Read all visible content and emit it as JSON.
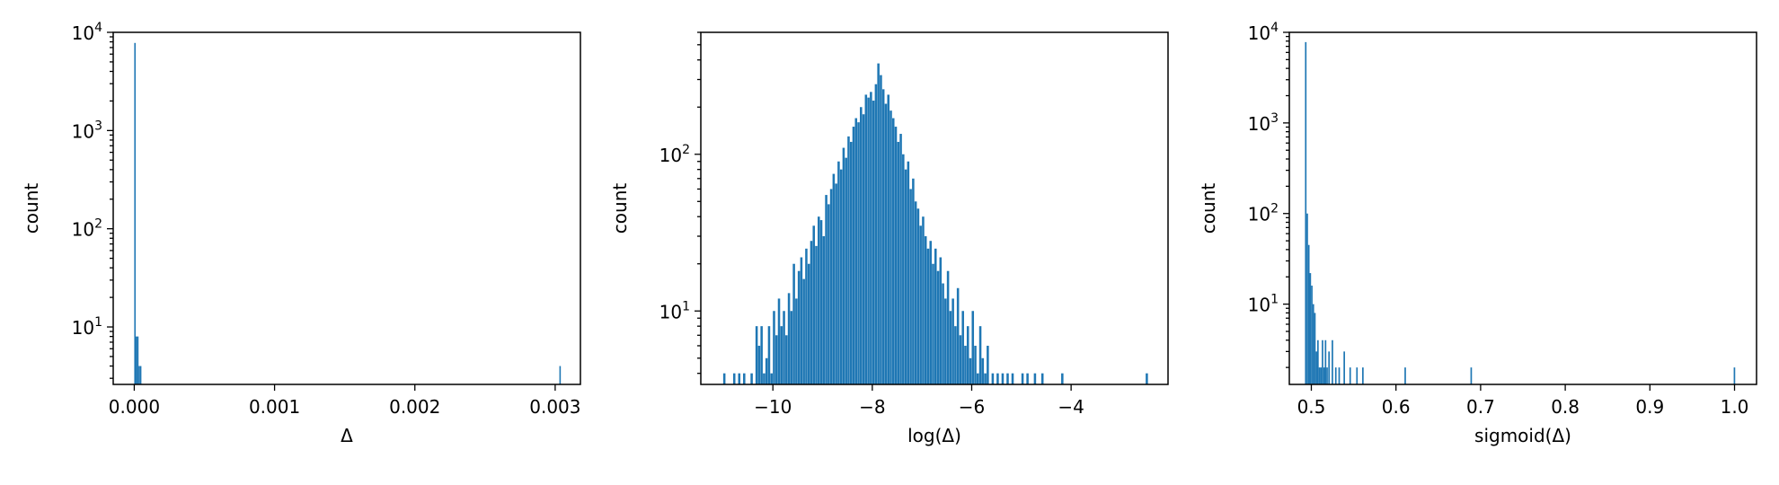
{
  "colors": {
    "bar": "#1f77b4",
    "axis": "#000000",
    "background": "#ffffff"
  },
  "chart_data": [
    {
      "type": "bar",
      "subtype": "histogram",
      "xlabel": "Δ",
      "ylabel": "count",
      "yscale": "log",
      "xlim": [
        -0.00015,
        0.00318
      ],
      "ylim": [
        2.6,
        10000
      ],
      "xticks": [
        0,
        0.001,
        0.002,
        0.003
      ],
      "xtick_labels": [
        "0.000",
        "0.001",
        "0.002",
        "0.003"
      ],
      "yticks": [
        10,
        100,
        1000,
        10000
      ],
      "ytick_labels": [
        {
          "base": "10",
          "exp": "1"
        },
        {
          "base": "10",
          "exp": "2"
        },
        {
          "base": "10",
          "exp": "3"
        },
        {
          "base": "10",
          "exp": "4"
        }
      ],
      "bin_width": 1.02e-05,
      "bins": [
        {
          "x": 0.0,
          "count": 7800
        },
        {
          "x": 1.02e-05,
          "count": 8
        },
        {
          "x": 2.04e-05,
          "count": 8
        },
        {
          "x": 3.06e-05,
          "count": 4
        },
        {
          "x": 4.08e-05,
          "count": 4
        },
        {
          "x": 0.00303,
          "count": 4
        }
      ],
      "grid": false,
      "legend": "none"
    },
    {
      "type": "bar",
      "subtype": "histogram",
      "xlabel": "log(Δ)",
      "ylabel": "count",
      "yscale": "log",
      "xlim": [
        -11.45,
        -2.05
      ],
      "ylim": [
        3.4,
        600
      ],
      "xticks": [
        -10,
        -8,
        -6,
        -4
      ],
      "xtick_labels": [
        "−10",
        "−8",
        "−6",
        "−4"
      ],
      "yticks": [
        10,
        100
      ],
      "ytick_labels": [
        {
          "base": "10",
          "exp": "1"
        },
        {
          "base": "10",
          "exp": "2"
        }
      ],
      "bin_width": 0.046,
      "bins": [
        {
          "x": -11.0,
          "count": 4
        },
        {
          "x": -10.8,
          "count": 4
        },
        {
          "x": -10.7,
          "count": 4
        },
        {
          "x": -10.6,
          "count": 4
        },
        {
          "x": -10.45,
          "count": 4
        },
        {
          "x": -10.35,
          "count": 8
        },
        {
          "x": -10.3,
          "count": 6
        },
        {
          "x": -10.25,
          "count": 8
        },
        {
          "x": -10.2,
          "count": 4
        },
        {
          "x": -10.15,
          "count": 5
        },
        {
          "x": -10.1,
          "count": 8
        },
        {
          "x": -10.05,
          "count": 4
        },
        {
          "x": -10.0,
          "count": 10
        },
        {
          "x": -9.95,
          "count": 7
        },
        {
          "x": -9.9,
          "count": 12
        },
        {
          "x": -9.85,
          "count": 8
        },
        {
          "x": -9.8,
          "count": 10
        },
        {
          "x": -9.75,
          "count": 7
        },
        {
          "x": -9.7,
          "count": 13
        },
        {
          "x": -9.65,
          "count": 10
        },
        {
          "x": -9.6,
          "count": 20
        },
        {
          "x": -9.55,
          "count": 12
        },
        {
          "x": -9.5,
          "count": 18
        },
        {
          "x": -9.45,
          "count": 22
        },
        {
          "x": -9.4,
          "count": 16
        },
        {
          "x": -9.35,
          "count": 25
        },
        {
          "x": -9.3,
          "count": 20
        },
        {
          "x": -9.25,
          "count": 28
        },
        {
          "x": -9.2,
          "count": 35
        },
        {
          "x": -9.15,
          "count": 26
        },
        {
          "x": -9.1,
          "count": 40
        },
        {
          "x": -9.05,
          "count": 38
        },
        {
          "x": -9.0,
          "count": 30
        },
        {
          "x": -8.95,
          "count": 55
        },
        {
          "x": -8.9,
          "count": 48
        },
        {
          "x": -8.85,
          "count": 60
        },
        {
          "x": -8.8,
          "count": 75
        },
        {
          "x": -8.75,
          "count": 65
        },
        {
          "x": -8.7,
          "count": 90
        },
        {
          "x": -8.65,
          "count": 80
        },
        {
          "x": -8.6,
          "count": 110
        },
        {
          "x": -8.55,
          "count": 95
        },
        {
          "x": -8.5,
          "count": 130
        },
        {
          "x": -8.45,
          "count": 120
        },
        {
          "x": -8.4,
          "count": 150
        },
        {
          "x": -8.35,
          "count": 170
        },
        {
          "x": -8.3,
          "count": 160
        },
        {
          "x": -8.25,
          "count": 200
        },
        {
          "x": -8.2,
          "count": 180
        },
        {
          "x": -8.15,
          "count": 240
        },
        {
          "x": -8.1,
          "count": 230
        },
        {
          "x": -8.05,
          "count": 250
        },
        {
          "x": -8.0,
          "count": 220
        },
        {
          "x": -7.95,
          "count": 280
        },
        {
          "x": -7.9,
          "count": 380
        },
        {
          "x": -7.85,
          "count": 320
        },
        {
          "x": -7.8,
          "count": 260
        },
        {
          "x": -7.75,
          "count": 210
        },
        {
          "x": -7.7,
          "count": 240
        },
        {
          "x": -7.65,
          "count": 190
        },
        {
          "x": -7.6,
          "count": 170
        },
        {
          "x": -7.55,
          "count": 150
        },
        {
          "x": -7.5,
          "count": 120
        },
        {
          "x": -7.45,
          "count": 135
        },
        {
          "x": -7.4,
          "count": 100
        },
        {
          "x": -7.35,
          "count": 80
        },
        {
          "x": -7.3,
          "count": 90
        },
        {
          "x": -7.25,
          "count": 60
        },
        {
          "x": -7.2,
          "count": 70
        },
        {
          "x": -7.15,
          "count": 50
        },
        {
          "x": -7.1,
          "count": 45
        },
        {
          "x": -7.05,
          "count": 35
        },
        {
          "x": -7.0,
          "count": 40
        },
        {
          "x": -6.95,
          "count": 30
        },
        {
          "x": -6.9,
          "count": 25
        },
        {
          "x": -6.85,
          "count": 28
        },
        {
          "x": -6.8,
          "count": 20
        },
        {
          "x": -6.75,
          "count": 25
        },
        {
          "x": -6.7,
          "count": 18
        },
        {
          "x": -6.65,
          "count": 22
        },
        {
          "x": -6.6,
          "count": 15
        },
        {
          "x": -6.55,
          "count": 12
        },
        {
          "x": -6.5,
          "count": 18
        },
        {
          "x": -6.45,
          "count": 10
        },
        {
          "x": -6.4,
          "count": 12
        },
        {
          "x": -6.35,
          "count": 8
        },
        {
          "x": -6.3,
          "count": 14
        },
        {
          "x": -6.25,
          "count": 7
        },
        {
          "x": -6.2,
          "count": 10
        },
        {
          "x": -6.15,
          "count": 6
        },
        {
          "x": -6.1,
          "count": 8
        },
        {
          "x": -6.05,
          "count": 5
        },
        {
          "x": -6.0,
          "count": 10
        },
        {
          "x": -5.95,
          "count": 6
        },
        {
          "x": -5.9,
          "count": 4
        },
        {
          "x": -5.85,
          "count": 8
        },
        {
          "x": -5.8,
          "count": 5
        },
        {
          "x": -5.75,
          "count": 4
        },
        {
          "x": -5.7,
          "count": 6
        },
        {
          "x": -5.6,
          "count": 4
        },
        {
          "x": -5.5,
          "count": 4
        },
        {
          "x": -5.4,
          "count": 4
        },
        {
          "x": -5.3,
          "count": 4
        },
        {
          "x": -5.2,
          "count": 4
        },
        {
          "x": -5.0,
          "count": 4
        },
        {
          "x": -4.9,
          "count": 4
        },
        {
          "x": -4.75,
          "count": 4
        },
        {
          "x": -4.6,
          "count": 4
        },
        {
          "x": -4.2,
          "count": 4
        },
        {
          "x": -2.5,
          "count": 4
        }
      ],
      "grid": false,
      "legend": "none"
    },
    {
      "type": "bar",
      "subtype": "histogram",
      "xlabel": "sigmoid(Δ)",
      "ylabel": "count",
      "yscale": "log",
      "xlim": [
        0.474,
        1.026
      ],
      "ylim": [
        1.3,
        10000
      ],
      "xticks": [
        0.5,
        0.6,
        0.7,
        0.8,
        0.9,
        1.0
      ],
      "xtick_labels": [
        "0.5",
        "0.6",
        "0.7",
        "0.8",
        "0.9",
        "1.0"
      ],
      "yticks": [
        10,
        100,
        1000,
        10000
      ],
      "ytick_labels": [
        {
          "base": "10",
          "exp": "1"
        },
        {
          "base": "10",
          "exp": "2"
        },
        {
          "base": "10",
          "exp": "3"
        },
        {
          "base": "10",
          "exp": "4"
        }
      ],
      "bin_width": 0.0018,
      "bins": [
        {
          "x": 0.4925,
          "count": 7800
        },
        {
          "x": 0.4943,
          "count": 100
        },
        {
          "x": 0.4961,
          "count": 45
        },
        {
          "x": 0.4979,
          "count": 22
        },
        {
          "x": 0.4997,
          "count": 16
        },
        {
          "x": 0.5015,
          "count": 10
        },
        {
          "x": 0.5033,
          "count": 8
        },
        {
          "x": 0.5051,
          "count": 3
        },
        {
          "x": 0.5069,
          "count": 4
        },
        {
          "x": 0.5087,
          "count": 2
        },
        {
          "x": 0.5105,
          "count": 2
        },
        {
          "x": 0.5123,
          "count": 4
        },
        {
          "x": 0.5141,
          "count": 2
        },
        {
          "x": 0.5159,
          "count": 4
        },
        {
          "x": 0.5177,
          "count": 2
        },
        {
          "x": 0.52,
          "count": 3
        },
        {
          "x": 0.524,
          "count": 4
        },
        {
          "x": 0.528,
          "count": 2
        },
        {
          "x": 0.532,
          "count": 2
        },
        {
          "x": 0.538,
          "count": 3
        },
        {
          "x": 0.545,
          "count": 2
        },
        {
          "x": 0.553,
          "count": 2
        },
        {
          "x": 0.56,
          "count": 2
        },
        {
          "x": 0.61,
          "count": 2
        },
        {
          "x": 0.688,
          "count": 2
        },
        {
          "x": 0.999,
          "count": 2
        }
      ],
      "grid": false,
      "legend": "none"
    }
  ]
}
